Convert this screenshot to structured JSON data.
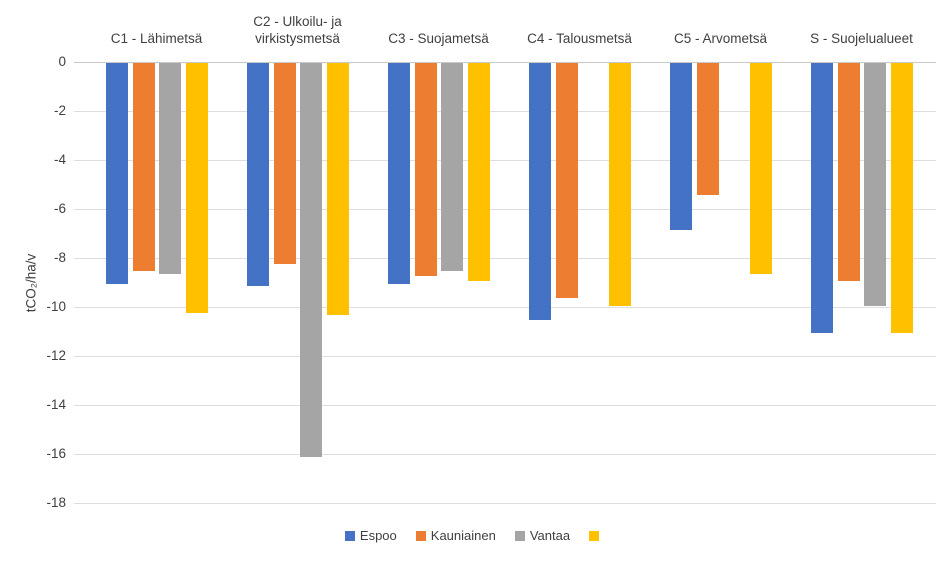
{
  "chart_data": {
    "type": "bar",
    "title": "",
    "ylabel": "tCO₂/ha/v",
    "xlabel": "",
    "ylim": [
      -18,
      0
    ],
    "yticks": [
      0,
      -2,
      -4,
      -6,
      -8,
      -10,
      -12,
      -14,
      -16,
      -18
    ],
    "grid": true,
    "legend_position": "bottom",
    "categories": [
      "C1 - Lähimetsä",
      "C2 - Ulkoilu- ja\nvirkistysmetsä",
      "C3 - Suojametsä",
      "C4 - Talousmetsä",
      "C5 - Arvometsä",
      "S - Suojelualueet"
    ],
    "series": [
      {
        "name": "Espoo",
        "color": "#4472C4",
        "values": [
          -9.0,
          -9.1,
          -9.0,
          -10.5,
          -6.8,
          -11.0
        ]
      },
      {
        "name": "Kauniainen",
        "color": "#ED7D31",
        "values": [
          -8.5,
          -8.2,
          -8.7,
          -9.6,
          -5.4,
          -8.9
        ]
      },
      {
        "name": "Vantaa",
        "color": "#A5A5A5",
        "values": [
          -8.6,
          -16.1,
          -8.5,
          null,
          null,
          -9.9
        ]
      },
      {
        "name": "",
        "color": "#FFC000",
        "values": [
          -10.2,
          -10.3,
          -8.9,
          -9.9,
          -8.6,
          -11.0
        ]
      }
    ]
  },
  "colors": {
    "text": "#404040",
    "gridline": "#dedede",
    "axis_line": "#c9c9c9",
    "background": "#ffffff"
  }
}
